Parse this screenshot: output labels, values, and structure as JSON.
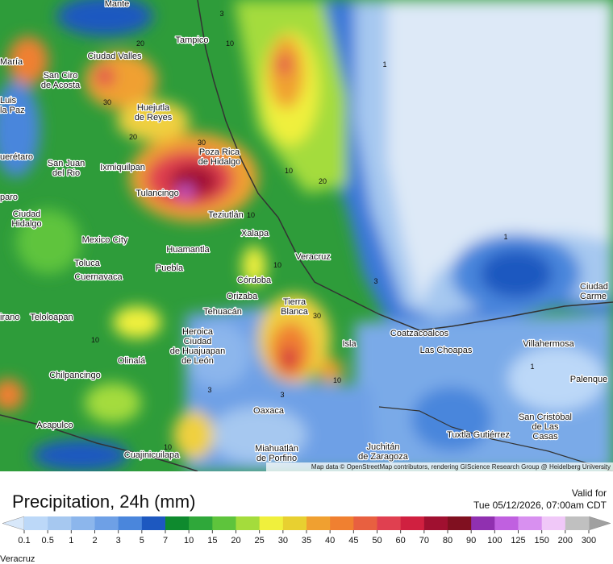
{
  "map": {
    "cities": [
      {
        "lines": [
          "Mante"
        ]
      },
      {
        "lines": [
          "Tampico"
        ]
      },
      {
        "lines": [
          "Ciudad Valles"
        ]
      },
      {
        "lines": [
          "María"
        ]
      },
      {
        "lines": [
          "San Ciro",
          "de Acosta"
        ]
      },
      {
        "lines": [
          "Luis",
          "la Paz"
        ]
      },
      {
        "lines": [
          "Huejutla",
          "de Reyes"
        ]
      },
      {
        "lines": [
          "Poza Rica",
          "de Hidalgo"
        ]
      },
      {
        "lines": [
          "uerétaro"
        ]
      },
      {
        "lines": [
          "San Juan",
          "del Rio"
        ]
      },
      {
        "lines": [
          "Ixmiquilpan"
        ]
      },
      {
        "lines": [
          "Tulancingo"
        ]
      },
      {
        "lines": [
          "paro"
        ]
      },
      {
        "lines": [
          "Teziutlán"
        ]
      },
      {
        "lines": [
          "Ciudad",
          "Hidalgo"
        ]
      },
      {
        "lines": [
          "Mexico City"
        ]
      },
      {
        "lines": [
          "Xalapa"
        ]
      },
      {
        "lines": [
          "Huamantla"
        ]
      },
      {
        "lines": [
          "Veracruz"
        ]
      },
      {
        "lines": [
          "Toluca"
        ]
      },
      {
        "lines": [
          "Puebla"
        ]
      },
      {
        "lines": [
          "Cuernavaca"
        ]
      },
      {
        "lines": [
          "Córdoba"
        ]
      },
      {
        "lines": [
          "Orizaba"
        ]
      },
      {
        "lines": [
          "Tehuacán"
        ]
      },
      {
        "lines": [
          "Tierra",
          "Blanca"
        ]
      },
      {
        "lines": [
          "irano"
        ]
      },
      {
        "lines": [
          "Teloloapan"
        ]
      },
      {
        "lines": [
          "Heroica",
          "Ciudad",
          "de Huajuapan",
          "de León"
        ]
      },
      {
        "lines": [
          "Coatzacoalcos"
        ]
      },
      {
        "lines": [
          "Las Choapas"
        ]
      },
      {
        "lines": [
          "Villahermosa"
        ]
      },
      {
        "lines": [
          "Isla"
        ]
      },
      {
        "lines": [
          "Olinalá"
        ]
      },
      {
        "lines": [
          "Chilpancingo"
        ]
      },
      {
        "lines": [
          "Palenque"
        ]
      },
      {
        "lines": [
          "Ciudad",
          "Carme"
        ]
      },
      {
        "lines": [
          "Oaxaca"
        ]
      },
      {
        "lines": [
          "Acapulco"
        ]
      },
      {
        "lines": [
          "San Cristóbal",
          "de Las",
          "Casas"
        ]
      },
      {
        "lines": [
          "Tuxtla Gutiérrez"
        ]
      },
      {
        "lines": [
          "Miahuatlán",
          "de Porfirio"
        ]
      },
      {
        "lines": [
          "Juchitán",
          "de Zaragoza"
        ]
      },
      {
        "lines": [
          "Cuajinicuilapa"
        ]
      }
    ],
    "contour_labels": [
      3,
      10,
      20,
      30,
      20,
      30,
      10,
      20,
      10,
      1,
      1,
      10,
      3,
      30,
      10,
      3,
      3,
      1,
      10,
      10
    ],
    "attribution": "Map data © OpenStreetMap contributors, rendering GIScience Research Group @ Heidelberg University"
  },
  "legend": {
    "title": "Precipitation, 24h (mm)",
    "valid_label": "Valid for",
    "valid_time": "Tue 05/12/2026, 07:00am CDT",
    "ticks": [
      0.1,
      0.5,
      1,
      2,
      3,
      5,
      7,
      10,
      15,
      20,
      25,
      30,
      35,
      40,
      45,
      50,
      60,
      70,
      80,
      90,
      100,
      125,
      150,
      200,
      300
    ],
    "colors": [
      "#bcd8f8",
      "#a6c8f0",
      "#8cb6ec",
      "#6ea0e6",
      "#4a86dc",
      "#1d58c0",
      "#0e8a2e",
      "#2fa83a",
      "#5ec43c",
      "#a4dc3c",
      "#f0f03c",
      "#e8d030",
      "#f0a030",
      "#f08030",
      "#e86040",
      "#e04050",
      "#d02040",
      "#a01030",
      "#801020",
      "#9030b0",
      "#c060e0",
      "#d890f0",
      "#f0c8f8",
      "#c0c0c0"
    ],
    "low_color": "#d8e8fa",
    "high_color": "#a0a0a0"
  },
  "footer": {
    "location": "Veracruz"
  }
}
